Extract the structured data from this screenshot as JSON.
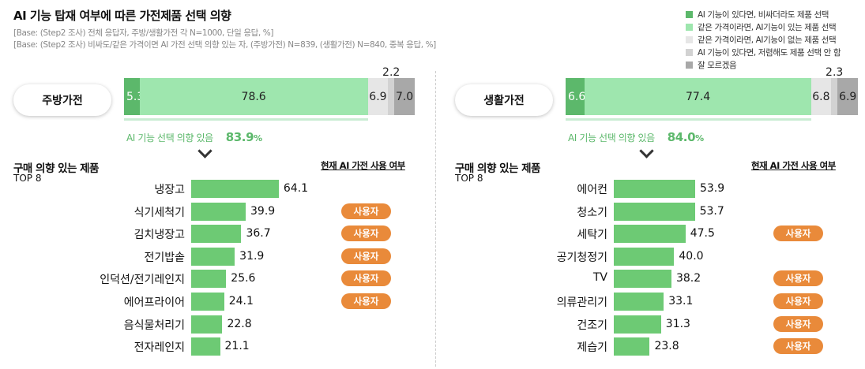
{
  "title": "AI 기능 탑재 여부에 따른 가전제품 선택 의향",
  "base1": "[Base: (Step2 조사) 전체 응답자, 주방/생활가전 각 N=1000, 단일 응답, %]",
  "base2": "[Base: (Step2 조사) 비싸도/같은 가격이면 AI 가전 선택 의향 있는 자, (주방가전) N=839, (생활가전) N=840, 중복 응답, %]",
  "legend": [
    {
      "label": "AI 기능이 있다면, 비싸더라도 제품 선택",
      "color": "#5cb86b"
    },
    {
      "label": "같은 가격이라면, AI기능이 있는 제품 선택",
      "color": "#9ee6ae"
    },
    {
      "label": "같은 가격이라면, AI기능이 없는 제품 선택",
      "color": "#e6e6e6"
    },
    {
      "label": "AI 기능이 있다면, 저렴해도 제품 선택 안 함",
      "color": "#d2d2d2"
    },
    {
      "label": "잘 모르겠음",
      "color": "#a8a8a8"
    }
  ],
  "section_title": "구매 의향 있는 제품",
  "top_label": "TOP 8",
  "usage_header": "현재 AI 가전 사용 여부",
  "badge_label": "사용자",
  "intent_label": "AI 기능 선택 의향 있음",
  "chart_data": [
    {
      "type": "bar",
      "category": "주방가전",
      "stacked": [
        5.3,
        78.6,
        6.9,
        2.2,
        7.0
      ],
      "intent": "83.9",
      "intent_unit": "%",
      "items": [
        {
          "name": "냉장고",
          "value": 64.1,
          "user": false
        },
        {
          "name": "식기세척기",
          "value": 39.9,
          "user": true
        },
        {
          "name": "김치냉장고",
          "value": 36.7,
          "user": true
        },
        {
          "name": "전기밥솥",
          "value": 31.9,
          "user": true
        },
        {
          "name": "인덕션/전기레인지",
          "value": 25.6,
          "user": true
        },
        {
          "name": "에어프라이어",
          "value": 24.1,
          "user": true
        },
        {
          "name": "음식물처리기",
          "value": 22.8,
          "user": false
        },
        {
          "name": "전자레인지",
          "value": 21.1,
          "user": false
        }
      ]
    },
    {
      "type": "bar",
      "category": "생활가전",
      "stacked": [
        6.6,
        77.4,
        6.8,
        2.3,
        6.9
      ],
      "intent": "84.0",
      "intent_unit": "%",
      "items": [
        {
          "name": "에어컨",
          "value": 53.9,
          "user": false
        },
        {
          "name": "청소기",
          "value": 53.7,
          "user": false
        },
        {
          "name": "세탁기",
          "value": 47.5,
          "user": true
        },
        {
          "name": "공기청정기",
          "value": 40.0,
          "user": false
        },
        {
          "name": "TV",
          "value": 38.2,
          "user": true
        },
        {
          "name": "의류관리기",
          "value": 33.1,
          "user": true
        },
        {
          "name": "건조기",
          "value": 31.3,
          "user": true
        },
        {
          "name": "제습기",
          "value": 23.8,
          "user": true
        }
      ]
    }
  ]
}
